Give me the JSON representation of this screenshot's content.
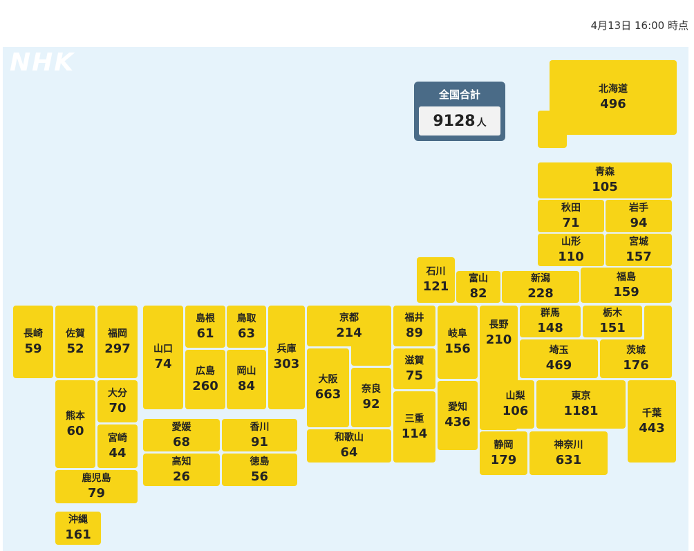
{
  "timestamp": "4月13日 16:00 時点",
  "logo": "NHK",
  "total": {
    "label": "全国合計",
    "value": "9128",
    "unit": "人"
  },
  "prefectures": {
    "hokkaido": {
      "name": "北海道",
      "count": "496"
    },
    "aomori": {
      "name": "青森",
      "count": "105"
    },
    "akita": {
      "name": "秋田",
      "count": "71"
    },
    "iwate": {
      "name": "岩手",
      "count": "94"
    },
    "yamagata": {
      "name": "山形",
      "count": "110"
    },
    "miyagi": {
      "name": "宮城",
      "count": "157"
    },
    "ishikawa": {
      "name": "石川",
      "count": "121"
    },
    "toyama": {
      "name": "富山",
      "count": "82"
    },
    "niigata": {
      "name": "新潟",
      "count": "228"
    },
    "fukushima": {
      "name": "福島",
      "count": "159"
    },
    "nagasaki": {
      "name": "長崎",
      "count": "59"
    },
    "saga": {
      "name": "佐賀",
      "count": "52"
    },
    "fukuoka": {
      "name": "福岡",
      "count": "297"
    },
    "yamaguchi": {
      "name": "山口",
      "count": "74"
    },
    "shimane": {
      "name": "島根",
      "count": "61"
    },
    "tottori": {
      "name": "鳥取",
      "count": "63"
    },
    "hyogo": {
      "name": "兵庫",
      "count": "303"
    },
    "kyoto": {
      "name": "京都",
      "count": "214"
    },
    "fukui": {
      "name": "福井",
      "count": "89"
    },
    "gifu": {
      "name": "岐阜",
      "count": "156"
    },
    "nagano": {
      "name": "長野",
      "count": "210"
    },
    "gunma": {
      "name": "群馬",
      "count": "148"
    },
    "tochigi": {
      "name": "栃木",
      "count": "151"
    },
    "hiroshima": {
      "name": "広島",
      "count": "260"
    },
    "okayama": {
      "name": "岡山",
      "count": "84"
    },
    "osaka": {
      "name": "大阪",
      "count": "663"
    },
    "nara": {
      "name": "奈良",
      "count": "92"
    },
    "shiga": {
      "name": "滋賀",
      "count": "75"
    },
    "saitama": {
      "name": "埼玉",
      "count": "469"
    },
    "ibaraki": {
      "name": "茨城",
      "count": "176"
    },
    "kumamoto": {
      "name": "熊本",
      "count": "60"
    },
    "oita": {
      "name": "大分",
      "count": "70"
    },
    "miyazaki": {
      "name": "宮崎",
      "count": "44"
    },
    "ehime": {
      "name": "愛媛",
      "count": "68"
    },
    "kagawa": {
      "name": "香川",
      "count": "91"
    },
    "kochi": {
      "name": "高知",
      "count": "26"
    },
    "tokushima": {
      "name": "徳島",
      "count": "56"
    },
    "wakayama": {
      "name": "和歌山",
      "count": "64"
    },
    "mie": {
      "name": "三重",
      "count": "114"
    },
    "aichi": {
      "name": "愛知",
      "count": "436"
    },
    "yamanashi": {
      "name": "山梨",
      "count": "106"
    },
    "tokyo": {
      "name": "東京",
      "count": "1181"
    },
    "chiba": {
      "name": "千葉",
      "count": "443"
    },
    "shizuoka": {
      "name": "静岡",
      "count": "179"
    },
    "kanagawa": {
      "name": "神奈川",
      "count": "631"
    },
    "kagoshima": {
      "name": "鹿児島",
      "count": "79"
    },
    "okinawa": {
      "name": "沖縄",
      "count": "161"
    }
  },
  "colors": {
    "tile": "#f7d417",
    "map_background": "#e6f3fb",
    "total_box": "#4a6b87"
  }
}
